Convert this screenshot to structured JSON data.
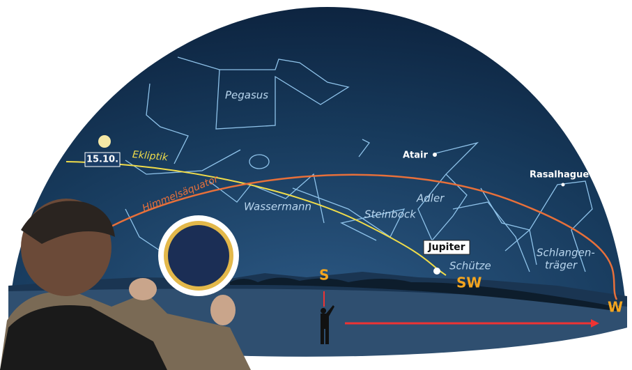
{
  "constellations": [
    "Pegasus",
    "Wassermann",
    "Steinbock",
    "Adler",
    "Schütze"
  ],
  "ophiuchus": [
    "Schlangen-",
    "träger"
  ],
  "stars": [
    "Atair",
    "Rasalhague"
  ],
  "date": "15.10.",
  "ecliptic": "Ekliptik",
  "equator": "Himmelsäquator",
  "planet": "Jupiter",
  "directions": [
    "S",
    "SW",
    "W"
  ]
}
